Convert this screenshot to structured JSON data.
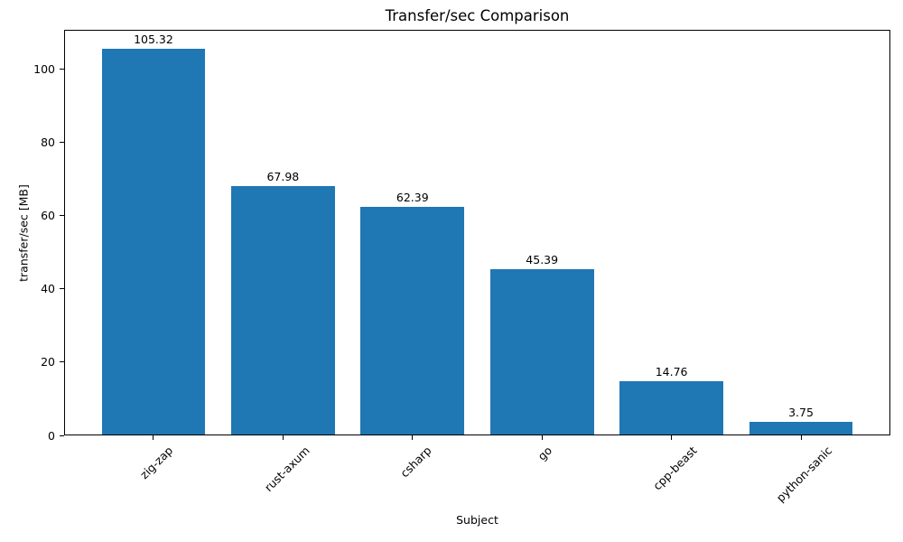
{
  "chart_data": {
    "type": "bar",
    "title": "Transfer/sec Comparison",
    "xlabel": "Subject",
    "ylabel": "transfer/sec [MB]",
    "categories": [
      "zig-zap",
      "rust-axum",
      "csharp",
      "go",
      "cpp-beast",
      "python-sanic"
    ],
    "values": [
      105.32,
      67.98,
      62.39,
      45.39,
      14.76,
      3.75
    ],
    "bar_value_labels": [
      "105.32",
      "67.98",
      "62.39",
      "45.39",
      "14.76",
      "3.75"
    ],
    "ytick_labels": [
      "0",
      "20",
      "40",
      "60",
      "80",
      "100"
    ],
    "ylim": [
      0,
      110.6
    ],
    "bar_color": "#1f77b4",
    "axis_color": "#000000",
    "text_color": "#000000",
    "grid": false,
    "legend_position": "none",
    "bar_width_fraction": 0.8,
    "x_tick_rotation_deg": 45
  }
}
